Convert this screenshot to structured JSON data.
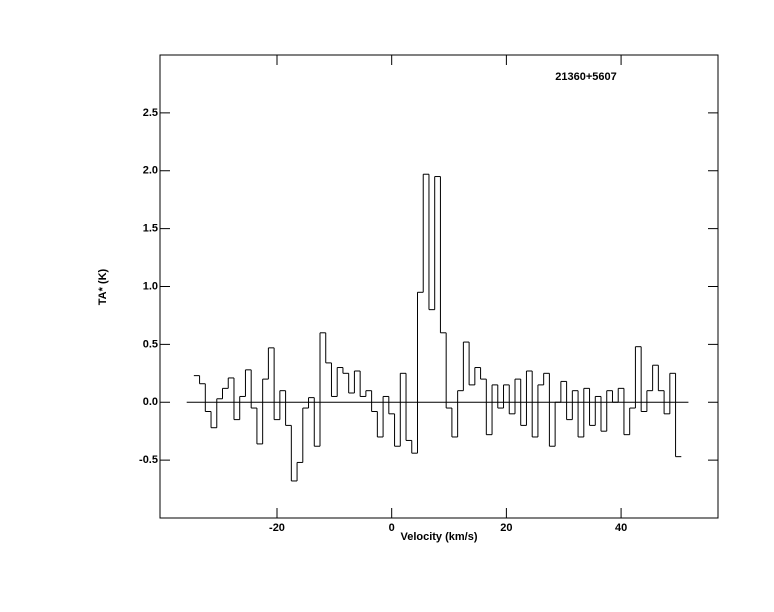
{
  "chart_data": {
    "type": "step",
    "title": "21360+5607",
    "xlabel": "Velocity (km/s)",
    "ylabel": "TA* (K)",
    "color": "#000000",
    "x": [
      -34,
      -33,
      -32,
      -31,
      -30,
      -29,
      -28,
      -27,
      -26,
      -25,
      -24,
      -23,
      -22,
      -21,
      -20,
      -19,
      -18,
      -17,
      -16,
      -15,
      -14,
      -13,
      -12,
      -11,
      -10,
      -9,
      -8,
      -7,
      -6,
      -5,
      -4,
      -3,
      -2,
      -1,
      0,
      1,
      2,
      3,
      4,
      5,
      6,
      7,
      8,
      9,
      10,
      11,
      12,
      13,
      14,
      15,
      16,
      17,
      18,
      19,
      20,
      21,
      22,
      23,
      24,
      25,
      26,
      27,
      28,
      29,
      30,
      31,
      32,
      33,
      34,
      35,
      36,
      37,
      38,
      39,
      40,
      41,
      42,
      43,
      44,
      45,
      46,
      47,
      48,
      49,
      50
    ],
    "values": [
      0.23,
      0.16,
      -0.08,
      -0.22,
      0.03,
      0.12,
      0.21,
      -0.15,
      0.05,
      0.28,
      -0.05,
      -0.36,
      0.2,
      0.47,
      -0.15,
      0.1,
      -0.2,
      -0.68,
      -0.52,
      -0.05,
      0.04,
      -0.38,
      0.6,
      0.34,
      0.05,
      0.3,
      0.25,
      0.08,
      0.27,
      0.05,
      0.1,
      -0.08,
      -0.3,
      0.05,
      -0.1,
      -0.38,
      0.25,
      -0.33,
      -0.44,
      0.95,
      1.97,
      0.8,
      1.95,
      0.6,
      -0.05,
      -0.3,
      0.1,
      0.52,
      0.15,
      0.3,
      0.2,
      -0.28,
      0.15,
      -0.05,
      0.15,
      -0.1,
      0.2,
      -0.2,
      0.27,
      -0.3,
      0.15,
      0.25,
      -0.38,
      0.0,
      0.18,
      -0.15,
      0.1,
      -0.3,
      0.12,
      -0.2,
      0.05,
      -0.25,
      0.1,
      0.0,
      0.12,
      -0.28,
      -0.05,
      0.48,
      -0.08,
      0.1,
      0.32,
      0.1,
      -0.1,
      0.25,
      -0.47
    ],
    "xlim": [
      -40.4,
      56.9
    ],
    "ylim": [
      -1,
      3
    ],
    "xticks": [
      -20,
      0,
      20,
      40
    ],
    "yticks": [
      {
        "value": -0.5,
        "label": "-0.5"
      },
      {
        "value": 0,
        "label": "0.0"
      },
      0.5,
      {
        "value": 1,
        "label": "1.0"
      },
      1.5,
      {
        "value": 2,
        "label": "2.0"
      },
      2.5
    ]
  }
}
